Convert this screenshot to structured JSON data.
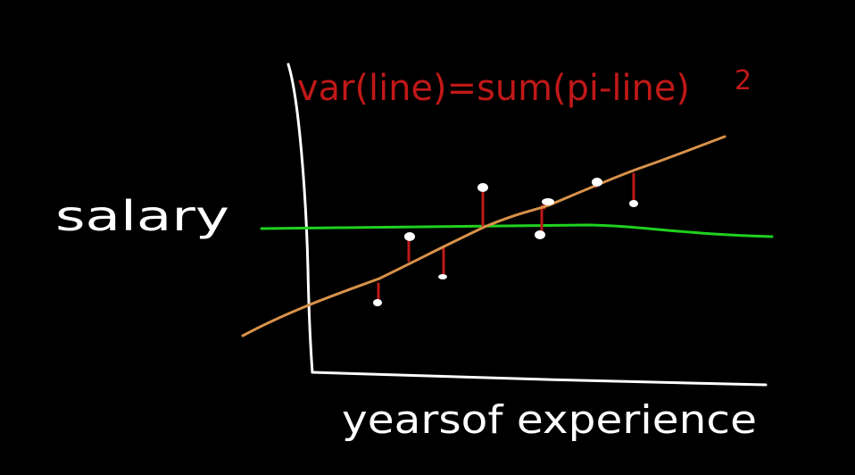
{
  "canvas": {
    "background": "#000000"
  },
  "formula": {
    "text": "var(line)=sum(pi-line)",
    "exponent": "2",
    "color": "#c01818"
  },
  "axes": {
    "y_label": "salary",
    "x_label": "yearsof experience",
    "color": "#ffffff"
  },
  "lines": {
    "fit_line_color": "#d8924a",
    "mean_line_color": "#1fd11f",
    "residual_color": "#c01818"
  },
  "points": {
    "count": 8,
    "color": "#ffffff"
  }
}
